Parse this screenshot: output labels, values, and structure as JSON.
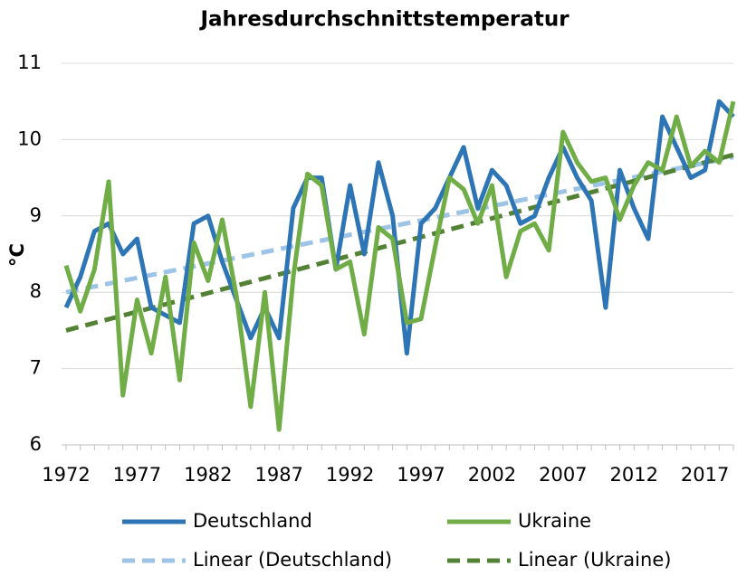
{
  "chart_data": {
    "type": "line",
    "title": "Jahresdurchschnittstemperatur",
    "y_label": "°C",
    "categories": [
      "1972",
      null,
      null,
      null,
      null,
      "1977",
      null,
      null,
      null,
      null,
      "1982",
      null,
      null,
      null,
      null,
      "1987",
      null,
      null,
      null,
      null,
      "1992",
      null,
      null,
      null,
      null,
      "1997",
      null,
      null,
      null,
      null,
      "2002",
      null,
      null,
      null,
      null,
      "2007",
      null,
      null,
      null,
      null,
      "2012",
      null,
      null,
      null,
      null,
      "2017",
      null,
      null
    ],
    "series": [
      {
        "name": "Deutschland",
        "color": "#2e75b6",
        "values": [
          7.8,
          8.2,
          8.8,
          8.9,
          8.5,
          8.7,
          7.8,
          7.7,
          7.6,
          8.9,
          9.0,
          8.4,
          7.9,
          7.4,
          7.8,
          7.4,
          9.1,
          9.5,
          9.5,
          8.3,
          9.4,
          8.5,
          9.7,
          9.0,
          7.2,
          8.9,
          9.1,
          9.5,
          9.9,
          9.1,
          9.6,
          9.4,
          8.9,
          9.0,
          9.5,
          9.9,
          9.5,
          9.2,
          7.8,
          9.6,
          9.1,
          8.7,
          10.3,
          9.9,
          9.5,
          9.6,
          10.5,
          10.3
        ]
      },
      {
        "name": "Ukraine",
        "color": "#70ad47",
        "values": [
          8.35,
          7.75,
          8.3,
          9.45,
          6.65,
          7.9,
          7.2,
          8.2,
          6.85,
          8.65,
          8.15,
          8.95,
          7.95,
          6.5,
          8.0,
          6.2,
          8.2,
          9.55,
          9.4,
          8.3,
          8.4,
          7.45,
          8.85,
          8.7,
          7.6,
          7.65,
          8.6,
          9.5,
          9.35,
          8.9,
          9.4,
          8.2,
          8.8,
          8.9,
          8.55,
          10.1,
          9.7,
          9.45,
          9.5,
          8.95,
          9.4,
          9.7,
          9.6,
          10.3,
          9.65,
          9.85,
          9.7,
          10.5
        ]
      }
    ],
    "trendlines": [
      {
        "name": "Linear (Deutschland)",
        "color": "#9dc3e6",
        "from": 8.0,
        "to": 9.77
      },
      {
        "name": "Linear (Ukraine)",
        "color": "#548235",
        "from": 7.5,
        "to": 9.8
      }
    ],
    "ylim": [
      6,
      11
    ],
    "yticks": [
      6,
      7,
      8,
      9,
      10,
      11
    ],
    "grid": true,
    "legend": "bottom"
  }
}
